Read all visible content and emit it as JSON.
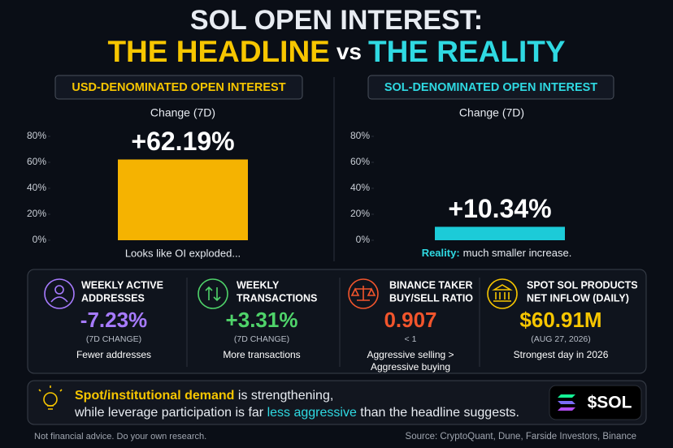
{
  "title": {
    "line1": "SOL OPEN INTEREST:",
    "headline": "THE HEADLINE",
    "vs": "vs",
    "reality": "THE REALITY"
  },
  "chart_data": [
    {
      "type": "bar",
      "title": "USD-DENOMINATED OPEN INTEREST",
      "subtitle": "Change (7D)",
      "values": [
        62.19
      ],
      "value_labels": [
        "+62.19%"
      ],
      "color": "#f5b301",
      "ylim": [
        0,
        80
      ],
      "yticks": [
        {
          "value": 0,
          "label": "0%"
        },
        {
          "value": 20,
          "label": "20%"
        },
        {
          "value": 40,
          "label": "40%"
        },
        {
          "value": 60,
          "label": "60%"
        },
        {
          "value": 80,
          "label": "80%"
        }
      ],
      "caption": "Looks like OI exploded..."
    },
    {
      "type": "bar",
      "title": "SOL-DENOMINATED OPEN INTEREST",
      "subtitle": "Change (7D)",
      "values": [
        10.34
      ],
      "value_labels": [
        "+10.34%"
      ],
      "color": "#1ccbd8",
      "ylim": [
        0,
        80
      ],
      "yticks": [
        {
          "value": 0,
          "label": "0%"
        },
        {
          "value": 20,
          "label": "20%"
        },
        {
          "value": 40,
          "label": "40%"
        },
        {
          "value": 60,
          "label": "60%"
        },
        {
          "value": 80,
          "label": "80%"
        }
      ],
      "caption_lead": "Reality:",
      "caption": "much smaller increase."
    }
  ],
  "metrics": [
    {
      "label": [
        "WEEKLY ACTIVE",
        "ADDRESSES"
      ],
      "value": "-7.23%",
      "note": "(7D CHANGE)",
      "description": [
        "Fewer addresses"
      ]
    },
    {
      "label": [
        "WEEKLY",
        "TRANSACTIONS"
      ],
      "value": "+3.31%",
      "note": "(7D CHANGE)",
      "description": [
        "More transactions"
      ]
    },
    {
      "label": [
        "BINANCE TAKER",
        "BUY/SELL RATIO"
      ],
      "value": "0.907",
      "note": "< 1",
      "description": [
        "Aggressive selling >",
        "Aggressive buying"
      ]
    },
    {
      "label": [
        "SPOT SOL PRODUCTS",
        "NET INFLOW (DAILY)"
      ],
      "value": "$60.91M",
      "note": "(AUG 27, 2026)",
      "description": [
        "Strongest day in 2026"
      ]
    }
  ],
  "banner": {
    "line1_highlight": "Spot/institutional demand",
    "line1_rest": " is strengthening,",
    "line2_start": "while leverage participation is far ",
    "line2_highlight": "less aggressive",
    "line2_end": " than the headline suggests.",
    "ticker": "$SOL"
  },
  "footer": {
    "disclaimer": "Not financial advice. Do your own research.",
    "source": "Source: CryptoQuant, Dune, Farside Investors, Binance"
  }
}
